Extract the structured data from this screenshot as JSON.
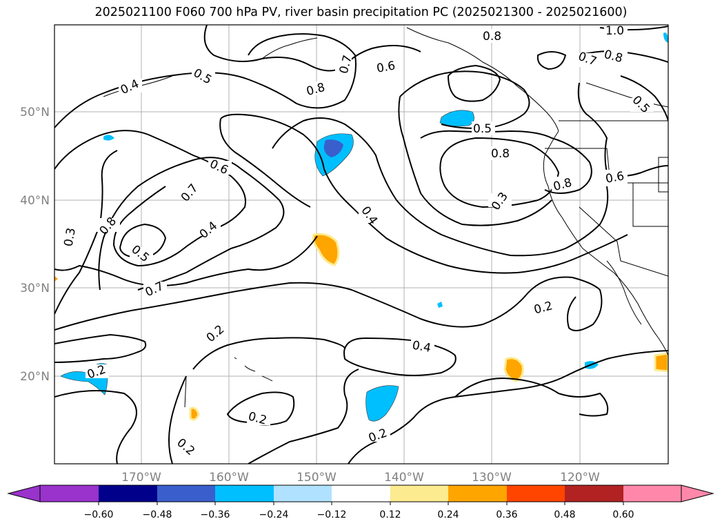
{
  "title": "2025021100 F060 700 hPa PV, river basin precipitation PC (2025021300 - 2025021600)",
  "lat_ticks": [
    "50°N",
    "40°N",
    "30°N",
    "20°N"
  ],
  "lon_ticks": [
    "170°W",
    "160°W",
    "150°W",
    "140°W",
    "130°W",
    "120°W"
  ],
  "colorbar": {
    "ticks": [
      "−0.60",
      "−0.48",
      "−0.36",
      "−0.24",
      "−0.12",
      "0.12",
      "0.24",
      "0.36",
      "0.48",
      "0.60"
    ],
    "colors": [
      "#9933cc",
      "#00008b",
      "#3a5fcd",
      "#00bfff",
      "#b0e2ff",
      "#ffffff",
      "#fdeb8f",
      "#ffa500",
      "#ff4500",
      "#b22222",
      "#ff88aa"
    ]
  },
  "contour_labels": [
    "1.0",
    "0.8",
    "0.8",
    "0.7",
    "0.6",
    "0.7",
    "0.8",
    "0.5",
    "0.4",
    "0.5",
    "0.5",
    "0.8",
    "0.8",
    "0.6",
    "0.6",
    "0.7",
    "0.3",
    "0.4",
    "0.8",
    "0.5",
    "0.4",
    "0.3",
    "0.7",
    "0.2",
    "0.4",
    "0.2",
    "0.2",
    "0.2",
    "0.2",
    "0.2"
  ]
}
